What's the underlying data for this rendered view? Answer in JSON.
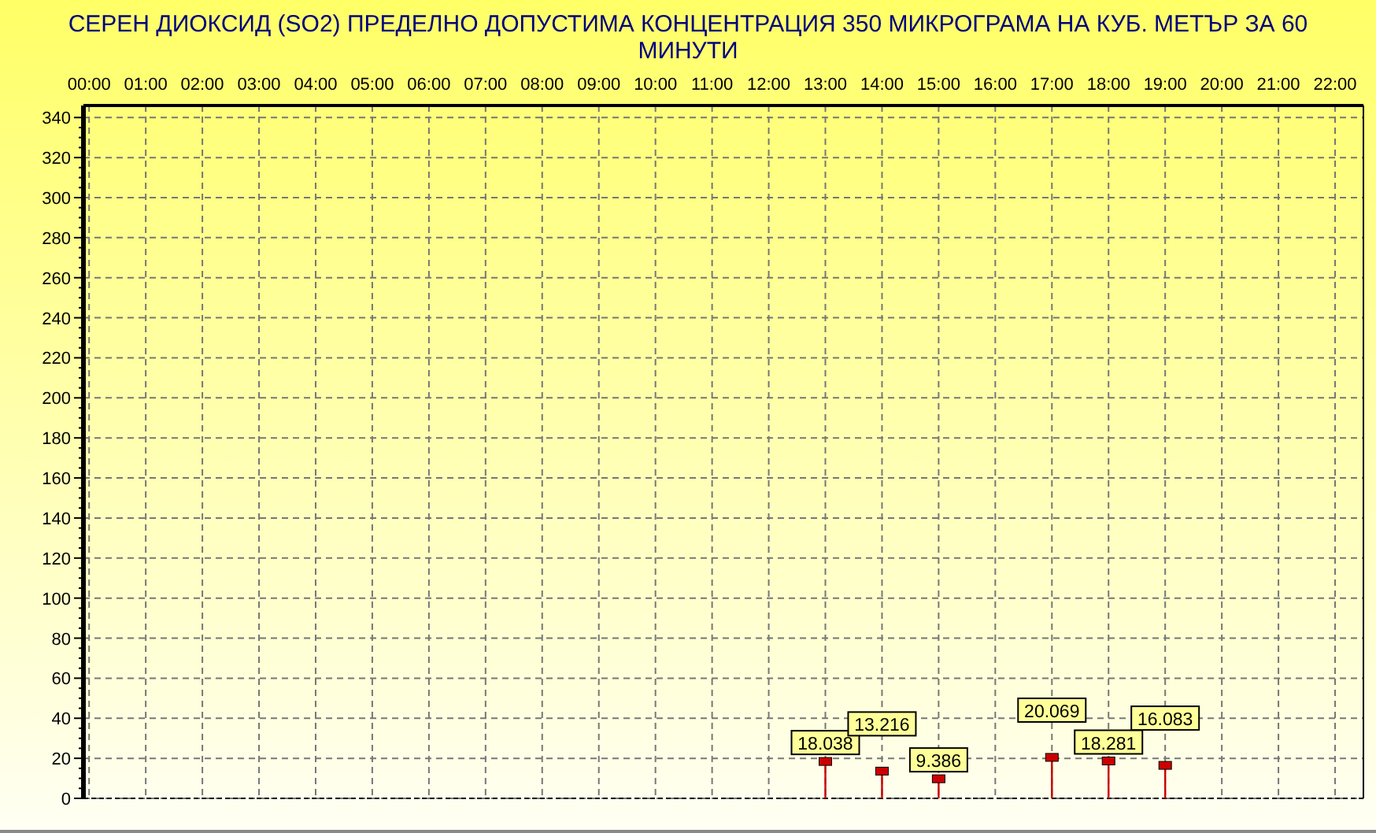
{
  "chart_data": {
    "type": "lollipop",
    "title": "СЕРЕН ДИОКСИД  (SO2)  ПРЕДЕЛНО ДОПУСТИМА КОНЦЕНТРАЦИЯ 350 МИКРОГРАМА  НА КУБ. МЕТЪР ЗА 60 МИНУТИ",
    "x": [
      13,
      14,
      15,
      17,
      18,
      19
    ],
    "series": [
      {
        "color": "#cc0000",
        "values": [
          18.038,
          13.216,
          9.386,
          20.069,
          18.281,
          16.083
        ]
      }
    ],
    "data_labels": true,
    "marker": "square",
    "grid": true,
    "xlim": [
      -0.1,
      22.5
    ],
    "xticks": [
      {
        "value": 0,
        "label": "00:00"
      },
      {
        "value": 1,
        "label": "01:00"
      },
      {
        "value": 2,
        "label": "02:00"
      },
      {
        "value": 3,
        "label": "03:00"
      },
      {
        "value": 4,
        "label": "04:00"
      },
      {
        "value": 5,
        "label": "05:00"
      },
      {
        "value": 6,
        "label": "06:00"
      },
      {
        "value": 7,
        "label": "07:00"
      },
      {
        "value": 8,
        "label": "08:00"
      },
      {
        "value": 9,
        "label": "09:00"
      },
      {
        "value": 10,
        "label": "10:00"
      },
      {
        "value": 11,
        "label": "11:00"
      },
      {
        "value": 12,
        "label": "12:00"
      },
      {
        "value": 13,
        "label": "13:00"
      },
      {
        "value": 14,
        "label": "14:00"
      },
      {
        "value": 15,
        "label": "15:00"
      },
      {
        "value": 16,
        "label": "16:00"
      },
      {
        "value": 17,
        "label": "17:00"
      },
      {
        "value": 18,
        "label": "18:00"
      },
      {
        "value": 19,
        "label": "19:00"
      },
      {
        "value": 20,
        "label": "20:00"
      },
      {
        "value": 21,
        "label": "21:00"
      },
      {
        "value": 22,
        "label": "22:00"
      }
    ],
    "ylim": [
      0,
      346
    ],
    "yticks": [
      0,
      20,
      40,
      60,
      80,
      100,
      120,
      140,
      160,
      180,
      200,
      220,
      240,
      260,
      280,
      300,
      320,
      340
    ]
  }
}
